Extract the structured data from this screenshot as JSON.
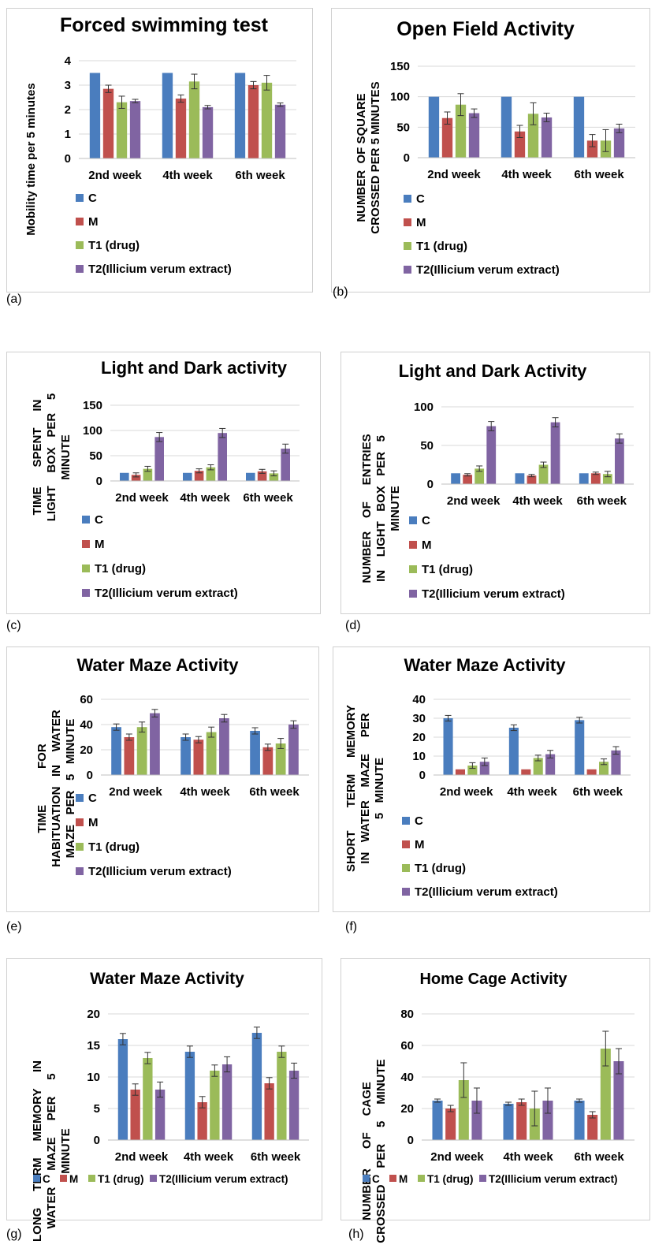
{
  "series_names": [
    "C",
    "M",
    "T1 (drug)",
    "T2(Illicium verum extract)"
  ],
  "colors": [
    "#4a7dbe",
    "#c0504d",
    "#9bbb59",
    "#8064a2"
  ],
  "panel_labels": [
    "(a)",
    "(b)",
    "(c)",
    "(d)",
    "(e)",
    "(f)",
    "(g)",
    "(h)"
  ],
  "chart_data": [
    {
      "type": "bar",
      "title": "Forced swimming test",
      "ylabel": [
        "Mobility time per 5 minutes"
      ],
      "categories": [
        "2nd week",
        "4th week",
        "6th week"
      ],
      "ylim": [
        0,
        4
      ],
      "yticks": [
        0,
        1,
        2,
        3,
        4
      ],
      "legend": "bottom-vertical",
      "series": [
        {
          "name": "C",
          "values": [
            3.5,
            3.5,
            3.5
          ],
          "errors": [
            0,
            0,
            0
          ]
        },
        {
          "name": "M",
          "values": [
            2.85,
            2.45,
            3.0
          ],
          "errors": [
            0.15,
            0.15,
            0.15
          ]
        },
        {
          "name": "T1 (drug)",
          "values": [
            2.3,
            3.15,
            3.1
          ],
          "errors": [
            0.25,
            0.3,
            0.3
          ]
        },
        {
          "name": "T2(Illicium verum extract)",
          "values": [
            2.35,
            2.1,
            2.2
          ],
          "errors": [
            0.07,
            0.07,
            0.07
          ]
        }
      ]
    },
    {
      "type": "bar",
      "title": "Open Field Activity",
      "ylabel": [
        "NUMBER  OF SQUARE",
        "CROSSED PER 5 MINUTES"
      ],
      "categories": [
        "2nd week",
        "4th week",
        "6th week"
      ],
      "ylim": [
        0,
        150
      ],
      "yticks": [
        0,
        50,
        100,
        150
      ],
      "legend": "bottom-vertical",
      "series": [
        {
          "name": "C",
          "values": [
            100,
            100,
            100
          ],
          "errors": [
            0,
            0,
            0
          ]
        },
        {
          "name": "M",
          "values": [
            65,
            43,
            28
          ],
          "errors": [
            10,
            10,
            10
          ]
        },
        {
          "name": "T1 (drug)",
          "values": [
            87,
            72,
            28
          ],
          "errors": [
            18,
            18,
            18
          ]
        },
        {
          "name": "T2(Illicium verum extract)",
          "values": [
            73,
            66,
            48
          ],
          "errors": [
            7,
            7,
            7
          ]
        }
      ]
    },
    {
      "type": "bar",
      "title": "Light and Dark activity",
      "ylabel": [
        "TIME      SPENT     IN",
        "LIGHT    BOX   PER    5",
        "MINUTE"
      ],
      "categories": [
        "2nd week",
        "4th week",
        "6th week"
      ],
      "ylim": [
        0,
        150
      ],
      "yticks": [
        0,
        50,
        100,
        150
      ],
      "legend": "bottom-vertical",
      "series": [
        {
          "name": "C",
          "values": [
            16,
            16,
            16
          ],
          "errors": [
            0,
            0,
            0
          ]
        },
        {
          "name": "M",
          "values": [
            12,
            20,
            19
          ],
          "errors": [
            4,
            4,
            4
          ]
        },
        {
          "name": "T1 (drug)",
          "values": [
            24,
            27,
            15
          ],
          "errors": [
            5,
            5,
            5
          ]
        },
        {
          "name": "T2(Illicium verum extract)",
          "values": [
            87,
            95,
            64
          ],
          "errors": [
            9,
            9,
            9
          ]
        }
      ]
    },
    {
      "type": "bar",
      "title": "Light and Dark Activity",
      "ylabel": [
        "NUMBER    OF     ENTRIES",
        "IN    LIGHT   BOX   PER   5",
        "MINUTE"
      ],
      "categories": [
        "2nd week",
        "4th week",
        "6th week"
      ],
      "ylim": [
        0,
        100
      ],
      "yticks": [
        0,
        50,
        100
      ],
      "legend": "bottom-vertical",
      "series": [
        {
          "name": "C",
          "values": [
            14,
            14,
            14
          ],
          "errors": [
            0,
            0,
            0
          ]
        },
        {
          "name": "M",
          "values": [
            12,
            11,
            14
          ],
          "errors": [
            1.5,
            1.5,
            1.5
          ]
        },
        {
          "name": "T1 (drug)",
          "values": [
            20,
            25,
            13
          ],
          "errors": [
            3.5,
            3.5,
            3.5
          ]
        },
        {
          "name": "T2(Illicium verum extract)",
          "values": [
            75,
            80,
            59
          ],
          "errors": [
            6,
            6,
            6
          ]
        }
      ]
    },
    {
      "type": "bar",
      "title": "Water Maze Activity",
      "ylabel": [
        "TIME           FOR",
        "HABITUATION   IN    WATER",
        "MAZE   PER   5   MINUTE"
      ],
      "categories": [
        "2nd week",
        "4th week",
        "6th week"
      ],
      "ylim": [
        0,
        60
      ],
      "yticks": [
        0,
        20,
        40,
        60
      ],
      "legend": "bottom-vertical",
      "series": [
        {
          "name": "C",
          "values": [
            38,
            30,
            35
          ],
          "errors": [
            2.5,
            2.5,
            2.5
          ]
        },
        {
          "name": "M",
          "values": [
            30,
            28,
            22
          ],
          "errors": [
            2.5,
            2.5,
            2.5
          ]
        },
        {
          "name": "T1 (drug)",
          "values": [
            38,
            34,
            25
          ],
          "errors": [
            4,
            4,
            4
          ]
        },
        {
          "name": "T2(Illicium verum extract)",
          "values": [
            49,
            45,
            40
          ],
          "errors": [
            3,
            3,
            3
          ]
        }
      ]
    },
    {
      "type": "bar",
      "title": "Water Maze Activity",
      "ylabel": [
        "SHORT       TERM     MEMORY",
        "IN   WATER    MAZE     PER",
        "5   MINUTE"
      ],
      "categories": [
        "2nd week",
        "4th week",
        "6th week"
      ],
      "ylim": [
        0,
        40
      ],
      "yticks": [
        0,
        10,
        20,
        30,
        40
      ],
      "legend": "bottom-vertical",
      "series": [
        {
          "name": "C",
          "values": [
            30,
            25,
            29
          ],
          "errors": [
            1.5,
            1.5,
            1.5
          ]
        },
        {
          "name": "M",
          "values": [
            3,
            3,
            3
          ],
          "errors": [
            0,
            0,
            0
          ]
        },
        {
          "name": "T1 (drug)",
          "values": [
            5,
            9,
            7
          ],
          "errors": [
            1.5,
            1.5,
            1.5
          ]
        },
        {
          "name": "T2(Illicium verum extract)",
          "values": [
            7,
            11,
            13
          ],
          "errors": [
            2,
            2,
            2
          ]
        }
      ]
    },
    {
      "type": "bar",
      "title": "Water Maze Activity",
      "ylabel": [
        "LONG     TERM     MEMORY     IN",
        "WATER     MAZE     PER     5",
        "MINUTE"
      ],
      "categories": [
        "2nd week",
        "4th week",
        "6th week"
      ],
      "ylim": [
        0,
        20
      ],
      "yticks": [
        0,
        5,
        10,
        15,
        20
      ],
      "legend": "bottom-row",
      "series": [
        {
          "name": "C",
          "values": [
            16,
            14,
            17
          ],
          "errors": [
            0.9,
            0.9,
            0.9
          ]
        },
        {
          "name": "M",
          "values": [
            8,
            6,
            9
          ],
          "errors": [
            0.9,
            0.9,
            0.9
          ]
        },
        {
          "name": "T1 (drug)",
          "values": [
            13,
            11,
            14
          ],
          "errors": [
            0.9,
            0.9,
            0.9
          ]
        },
        {
          "name": "T2(Illicium verum extract)",
          "values": [
            8,
            12,
            11
          ],
          "errors": [
            1.2,
            1.2,
            1.2
          ]
        }
      ]
    },
    {
      "type": "bar",
      "title": "Home Cage Activity",
      "ylabel": [
        "NUMBER      OF     CAGE",
        "CROSSED     PER     5     MINUTE"
      ],
      "categories": [
        "2nd week",
        "4th week",
        "6th week"
      ],
      "ylim": [
        0,
        80
      ],
      "yticks": [
        0,
        20,
        40,
        60,
        80
      ],
      "legend": "bottom-row",
      "series": [
        {
          "name": "C",
          "values": [
            25,
            23,
            25
          ],
          "errors": [
            1,
            1,
            1
          ]
        },
        {
          "name": "M",
          "values": [
            20,
            24,
            16
          ],
          "errors": [
            2,
            2,
            2
          ]
        },
        {
          "name": "T1 (drug)",
          "values": [
            38,
            20,
            58
          ],
          "errors": [
            11,
            11,
            11
          ]
        },
        {
          "name": "T2(Illicium verum extract)",
          "values": [
            25,
            25,
            50
          ],
          "errors": [
            8,
            8,
            8
          ]
        }
      ]
    }
  ]
}
